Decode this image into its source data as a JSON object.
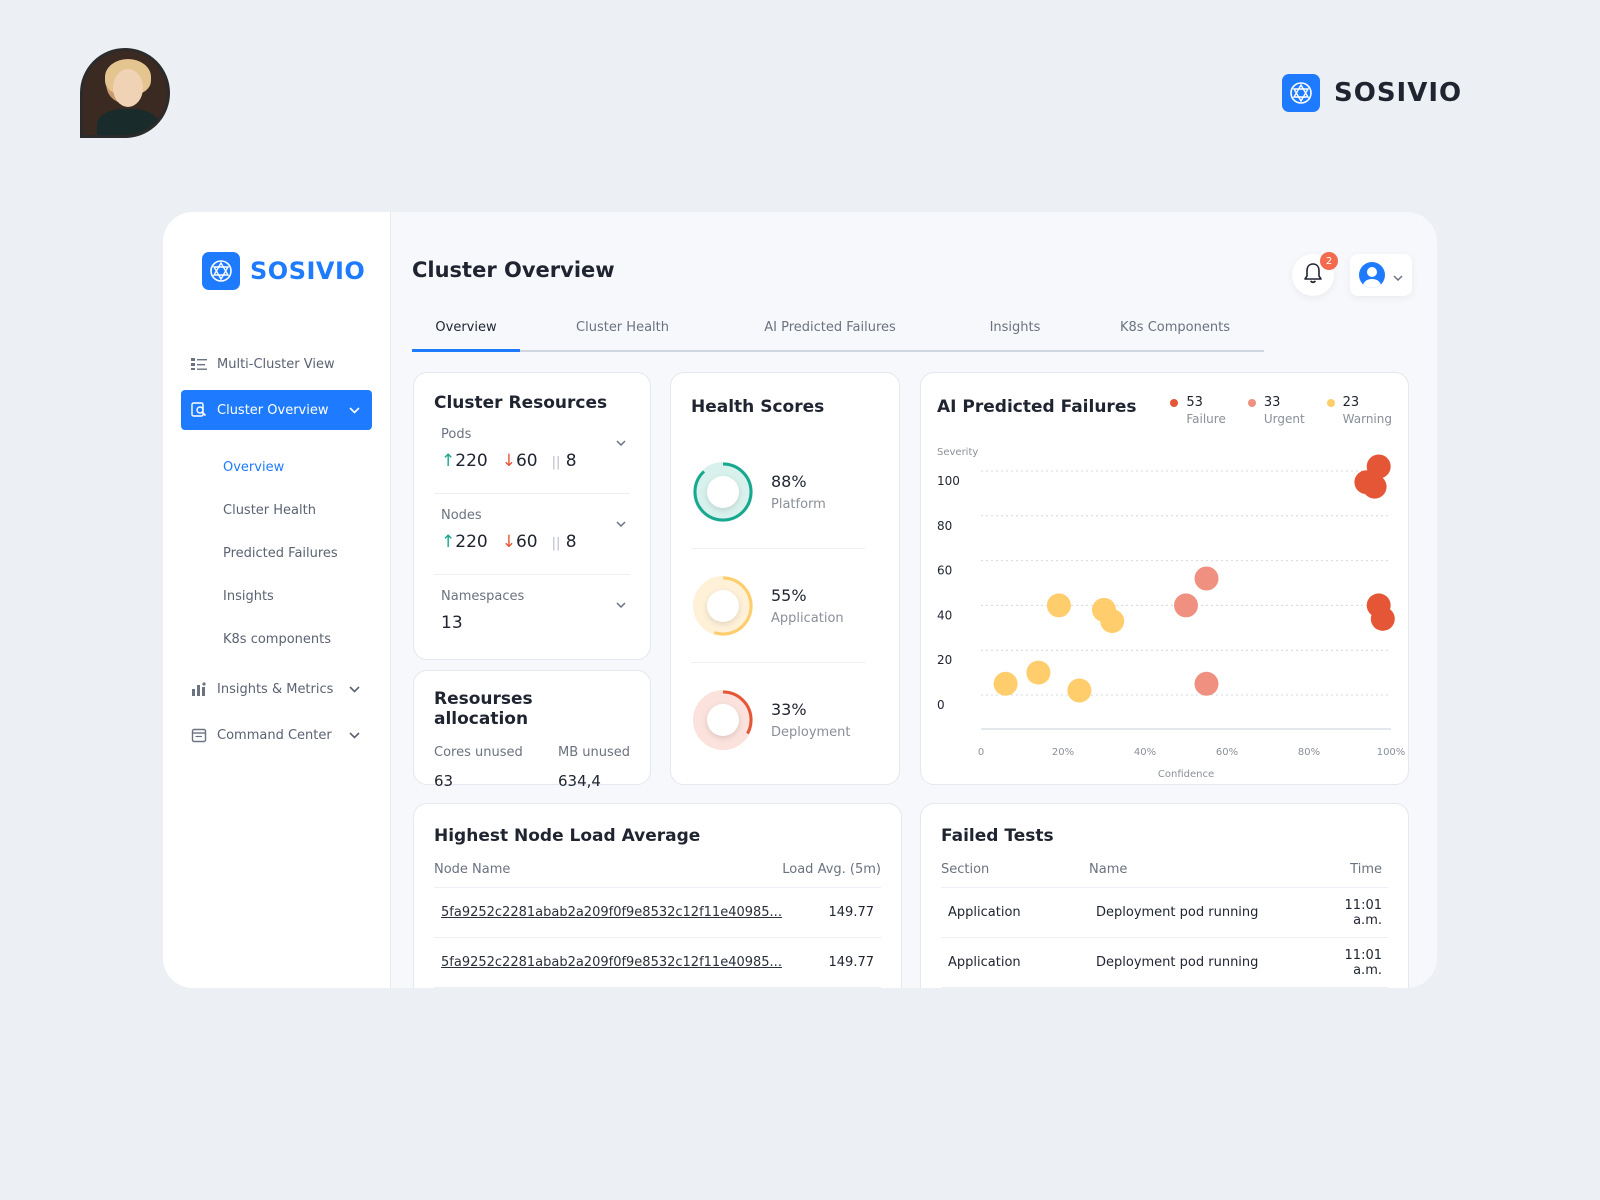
{
  "brand": {
    "name": "SOSIVIO"
  },
  "sidebar": {
    "brand": "SOSIVIO",
    "items": [
      {
        "label": "Multi-Cluster View",
        "icon": "list-icon"
      },
      {
        "label": "Cluster Overview",
        "icon": "search-doc-icon",
        "active": true
      },
      {
        "label": "Insights & Metrics",
        "icon": "chart-icon"
      },
      {
        "label": "Command Center",
        "icon": "calendar-icon"
      }
    ],
    "subitems": [
      "Overview",
      "Cluster Health",
      "Predicted Failures",
      "Insights",
      "K8s components"
    ]
  },
  "header": {
    "title": "Cluster Overview",
    "notifications": "2"
  },
  "tabs": [
    "Overview",
    "Cluster Health",
    "AI Predicted Failures",
    "Insights",
    "K8s Components"
  ],
  "cluster_resources": {
    "title": "Cluster Resources",
    "pods": {
      "label": "Pods",
      "up": "220",
      "down": "60",
      "other": "8"
    },
    "nodes": {
      "label": "Nodes",
      "up": "220",
      "down": "60",
      "other": "8"
    },
    "namespaces": {
      "label": "Namespaces",
      "value": "13"
    }
  },
  "allocation": {
    "title": "Resourses allocation",
    "cores_label": "Cores unused",
    "cores_value": "63",
    "mb_label": "MB unused",
    "mb_value": "634,4"
  },
  "health": {
    "title": "Health Scores",
    "scores": [
      {
        "pct": "88%",
        "label": "Platform",
        "value": 0.88,
        "color": "#17a88f",
        "bg": "#d8f1ec"
      },
      {
        "pct": "55%",
        "label": "Application",
        "value": 0.55,
        "color": "#ffcd6b",
        "bg": "#fff1d8"
      },
      {
        "pct": "33%",
        "label": "Deployment",
        "value": 0.33,
        "color": "#e55637",
        "bg": "#fbe2dc"
      }
    ]
  },
  "ai_failures": {
    "title": "AI Predicted Failures",
    "legend": [
      {
        "count": "53",
        "label": "Failure",
        "color": "#e55637"
      },
      {
        "count": "33",
        "label": "Urgent",
        "color": "#ef9080"
      },
      {
        "count": "23",
        "label": "Warning",
        "color": "#ffcd6b"
      }
    ]
  },
  "chart_data": {
    "type": "scatter",
    "title": "AI Predicted Failures",
    "xlabel": "Confidence",
    "ylabel": "Severity",
    "x_ticks": [
      "0",
      "20%",
      "40%",
      "60%",
      "80%",
      "100%"
    ],
    "y_ticks": [
      "0",
      "20",
      "40",
      "60",
      "80",
      "100"
    ],
    "xlim": [
      0,
      100
    ],
    "ylim": [
      0,
      100
    ],
    "series": [
      {
        "name": "Failure",
        "color": "#e55637",
        "points": [
          [
            97,
            102
          ],
          [
            94,
            95
          ],
          [
            96,
            93
          ],
          [
            97,
            40
          ],
          [
            98,
            34
          ]
        ]
      },
      {
        "name": "Urgent",
        "color": "#ef9080",
        "points": [
          [
            55,
            52
          ],
          [
            50,
            40
          ],
          [
            55,
            5
          ]
        ]
      },
      {
        "name": "Warning",
        "color": "#ffcd6b",
        "points": [
          [
            19,
            40
          ],
          [
            30,
            38
          ],
          [
            32,
            33
          ],
          [
            14,
            10
          ],
          [
            6,
            5
          ],
          [
            24,
            2
          ]
        ]
      }
    ]
  },
  "node_load": {
    "title": "Highest Node Load Average",
    "col_name": "Node Name",
    "col_load": "Load Avg. (5m)",
    "rows": [
      {
        "name": "5fa9252c2281abab2a209f0f9e8532c12f11e40985...",
        "load": "149.77"
      },
      {
        "name": "5fa9252c2281abab2a209f0f9e8532c12f11e40985...",
        "load": "149.77"
      }
    ]
  },
  "failed_tests": {
    "title": "Failed Tests",
    "col_section": "Section",
    "col_name": "Name",
    "col_time": "Time",
    "rows": [
      {
        "section": "Application",
        "name": "Deployment pod running",
        "time": "11:01 a.m."
      },
      {
        "section": "Application",
        "name": "Deployment pod running",
        "time": "11:01 a.m."
      }
    ]
  }
}
